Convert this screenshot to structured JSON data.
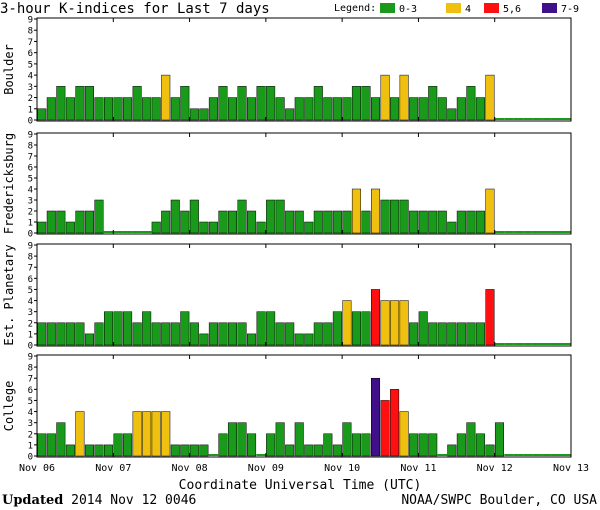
{
  "title": "3-hour K-indices for Last 7 days",
  "legend": {
    "label": "Legend:",
    "items": [
      {
        "label": "0-3",
        "color": "#1a9a1a"
      },
      {
        "label": "4",
        "color": "#f0c010"
      },
      {
        "label": "5,6",
        "color": "#ff1010"
      },
      {
        "label": "7-9",
        "color": "#40108a"
      }
    ]
  },
  "footer": {
    "xlabel": "Coordinate Universal Time (UTC)",
    "updated_label": "Updated",
    "updated_value": "2014 Nov 12 0046",
    "credit": "NOAA/SWPC Boulder, CO USA"
  },
  "chart_data": {
    "type": "bar",
    "x_ticks": [
      "Nov 06",
      "Nov 07",
      "Nov 08",
      "Nov 09",
      "Nov 10",
      "Nov 11",
      "Nov 12",
      "Nov 13"
    ],
    "ylim": [
      0,
      9
    ],
    "y_ticks": [
      0,
      1,
      2,
      3,
      4,
      5,
      6,
      7,
      8,
      9
    ],
    "series": [
      {
        "name": "Boulder",
        "values": [
          1,
          2,
          3,
          2,
          3,
          3,
          2,
          2,
          2,
          2,
          3,
          2,
          2,
          4,
          2,
          3,
          1,
          1,
          2,
          3,
          2,
          3,
          2,
          3,
          3,
          2,
          1,
          2,
          2,
          3,
          2,
          2,
          2,
          3,
          3,
          2,
          4,
          2,
          4,
          2,
          2,
          3,
          2,
          1,
          2,
          3,
          2,
          4
        ]
      },
      {
        "name": "Fredericksburg",
        "values": [
          1,
          2,
          2,
          1,
          2,
          2,
          3,
          0,
          0,
          0,
          0,
          0,
          1,
          2,
          3,
          2,
          3,
          1,
          1,
          2,
          2,
          3,
          2,
          1,
          3,
          3,
          2,
          2,
          1,
          2,
          2,
          2,
          2,
          4,
          2,
          4,
          3,
          3,
          3,
          2,
          2,
          2,
          2,
          1,
          2,
          2,
          2,
          4
        ]
      },
      {
        "name": "Est. Planetary",
        "values": [
          2,
          2,
          2,
          2,
          2,
          1,
          2,
          3,
          3,
          3,
          2,
          3,
          2,
          2,
          2,
          3,
          2,
          1,
          2,
          2,
          2,
          2,
          1,
          3,
          3,
          2,
          2,
          1,
          1,
          2,
          2,
          3,
          4,
          3,
          3,
          5,
          4,
          4,
          4,
          2,
          3,
          2,
          2,
          2,
          2,
          2,
          2,
          5
        ]
      },
      {
        "name": "College",
        "values": [
          2,
          2,
          3,
          1,
          4,
          1,
          1,
          1,
          2,
          2,
          4,
          4,
          4,
          4,
          1,
          1,
          1,
          1,
          0,
          2,
          3,
          3,
          2,
          0,
          2,
          3,
          1,
          3,
          1,
          1,
          2,
          1,
          3,
          2,
          2,
          7,
          5,
          6,
          4,
          2,
          2,
          2,
          0,
          1,
          2,
          3,
          2,
          1,
          3
        ]
      }
    ]
  }
}
